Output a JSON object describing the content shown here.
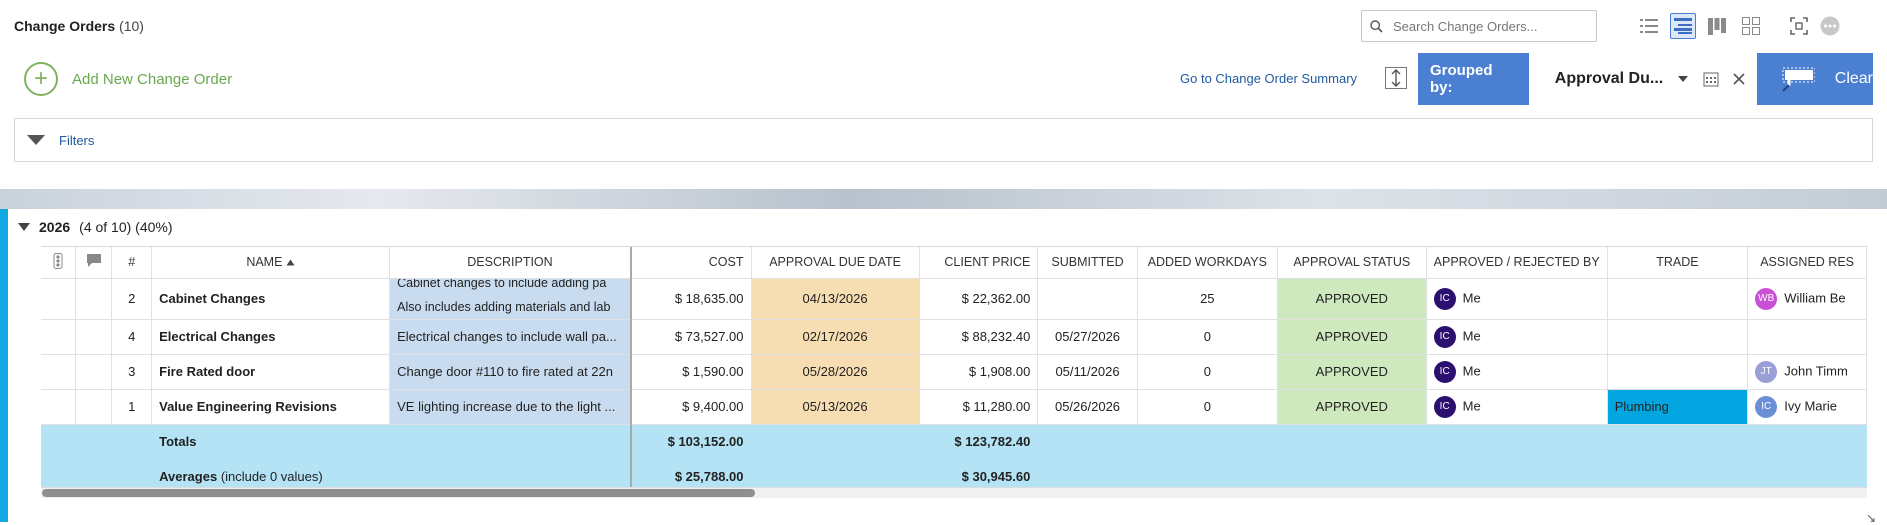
{
  "header": {
    "title": "Change Orders",
    "count": "(10)",
    "search_placeholder": "Search Change Orders..."
  },
  "toolbar": {
    "add_label": "Add New Change Order",
    "summary_link": "Go to Change Order Summary",
    "grouped_by_label": "Grouped by:",
    "grouped_by_value": "Approval Du...",
    "clear_label": "Clear"
  },
  "filters": {
    "label": "Filters"
  },
  "group": {
    "title": "2026",
    "detail": "(4 of 10) (40%)"
  },
  "columns": {
    "number": "#",
    "name": "NAME",
    "description": "DESCRIPTION",
    "cost": "COST",
    "approval_due_date": "APPROVAL DUE DATE",
    "client_price": "CLIENT PRICE",
    "submitted": "SUBMITTED",
    "added_workdays": "ADDED WORKDAYS",
    "approval_status": "APPROVAL STATUS",
    "approved_by": "APPROVED / REJECTED BY",
    "trade": "TRADE",
    "assigned": "ASSIGNED RES"
  },
  "rows": [
    {
      "number": "2",
      "name": "Cabinet Changes",
      "description": "Cabinet changes to include adding pa",
      "description_line2": "Also includes adding materials and lab",
      "cost": "$ 18,635.00",
      "approval_due_date": "04/13/2026",
      "client_price": "$ 22,362.00",
      "submitted": "",
      "added_workdays": "25",
      "approval_status": "APPROVED",
      "approver_initials": "IC",
      "approver_name": "Me",
      "trade": "",
      "assignee_initials": "WB",
      "assignee_name": "William Be",
      "assignee_color": "#c94fd6"
    },
    {
      "number": "4",
      "name": "Electrical Changes",
      "description": "Electrical changes to include wall pa...",
      "cost": "$ 73,527.00",
      "approval_due_date": "02/17/2026",
      "client_price": "$ 88,232.40",
      "submitted": "05/27/2026",
      "added_workdays": "0",
      "approval_status": "APPROVED",
      "approver_initials": "IC",
      "approver_name": "Me",
      "trade": "",
      "assignee_initials": "",
      "assignee_name": "",
      "assignee_color": ""
    },
    {
      "number": "3",
      "name": "Fire Rated door",
      "description": "Change door #110 to fire rated at 22n",
      "cost": "$ 1,590.00",
      "approval_due_date": "05/28/2026",
      "client_price": "$ 1,908.00",
      "submitted": "05/11/2026",
      "added_workdays": "0",
      "approval_status": "APPROVED",
      "approver_initials": "IC",
      "approver_name": "Me",
      "trade": "",
      "assignee_initials": "JT",
      "assignee_name": "John Timm",
      "assignee_color": "#9a9fd8"
    },
    {
      "number": "1",
      "name": "Value Engineering Revisions",
      "description": "VE lighting increase due to the light ...",
      "cost": "$ 9,400.00",
      "approval_due_date": "05/13/2026",
      "client_price": "$ 11,280.00",
      "submitted": "05/26/2026",
      "added_workdays": "0",
      "approval_status": "APPROVED",
      "approver_initials": "IC",
      "approver_name": "Me",
      "trade": "Plumbing",
      "assignee_initials": "IC",
      "assignee_name": "Ivy Marie",
      "assignee_color": "#6a8fd6"
    }
  ],
  "totals": {
    "label": "Totals",
    "cost": "$ 103,152.00",
    "client_price": "$ 123,782.40"
  },
  "averages": {
    "label": "Averages",
    "note": "(include 0 values)",
    "cost": "$ 25,788.00",
    "client_price": "$ 30,945.60"
  },
  "colors": {
    "accent": "#4a7fd1",
    "approved_bg": "#cfe9bf",
    "date_bg": "#f7ddb2",
    "description_bg": "#c9dcef",
    "summary_bg": "#b3e3f5",
    "trade_highlight": "#03a6e0",
    "approver_avatar": "#2b1070"
  }
}
